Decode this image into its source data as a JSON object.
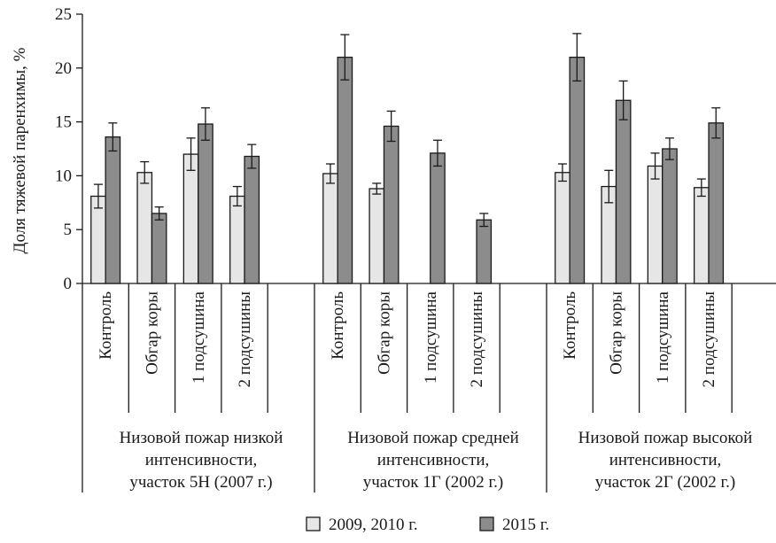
{
  "chart_data": {
    "type": "bar",
    "ylabel": "Доля тяжевой паренхимы, %",
    "ylim": [
      0,
      25
    ],
    "yticks": [
      0,
      5,
      10,
      15,
      20,
      25
    ],
    "groups": [
      {
        "label_lines": [
          "Низовой пожар низкой",
          "интенсивности,",
          "участок 5Н (2007 г.)"
        ],
        "categories": [
          "Контроль",
          "Обгар коры",
          "1 подсушина",
          "2 подсушины"
        ],
        "series": [
          {
            "values": [
              8.1,
              10.3,
              12.0,
              8.1
            ],
            "errors": [
              1.1,
              1.0,
              1.5,
              0.9
            ]
          },
          {
            "values": [
              13.6,
              6.5,
              14.8,
              11.8
            ],
            "errors": [
              1.3,
              0.6,
              1.5,
              1.1
            ]
          }
        ]
      },
      {
        "label_lines": [
          "Низовой пожар средней",
          "интенсивности,",
          "участок 1Г (2002 г.)"
        ],
        "categories": [
          "Контроль",
          "Обгар коры",
          "1 подсушина",
          "2 подсушины"
        ],
        "series": [
          {
            "values": [
              10.2,
              8.8,
              null,
              null
            ],
            "errors": [
              0.9,
              0.5,
              null,
              null
            ]
          },
          {
            "values": [
              21.0,
              14.6,
              12.1,
              5.9
            ],
            "errors": [
              2.1,
              1.4,
              1.2,
              0.6
            ]
          }
        ]
      },
      {
        "label_lines": [
          "Низовой пожар высокой",
          "интенсивности,",
          "участок 2Г (2002 г.)"
        ],
        "categories": [
          "Контроль",
          "Обгар коры",
          "1 подсушина",
          "2 подсушины"
        ],
        "series": [
          {
            "values": [
              10.3,
              9.0,
              10.9,
              8.9
            ],
            "errors": [
              0.8,
              1.5,
              1.2,
              0.8
            ]
          },
          {
            "values": [
              21.0,
              17.0,
              12.5,
              14.9
            ],
            "errors": [
              2.2,
              1.8,
              1.0,
              1.4
            ]
          }
        ]
      }
    ],
    "legend": {
      "placement": "bottom",
      "entries": [
        {
          "label": "2009, 2010 г.",
          "color": "#e6e6e6"
        },
        {
          "label": "2015 г.",
          "color": "#8c8c8c"
        }
      ]
    }
  }
}
